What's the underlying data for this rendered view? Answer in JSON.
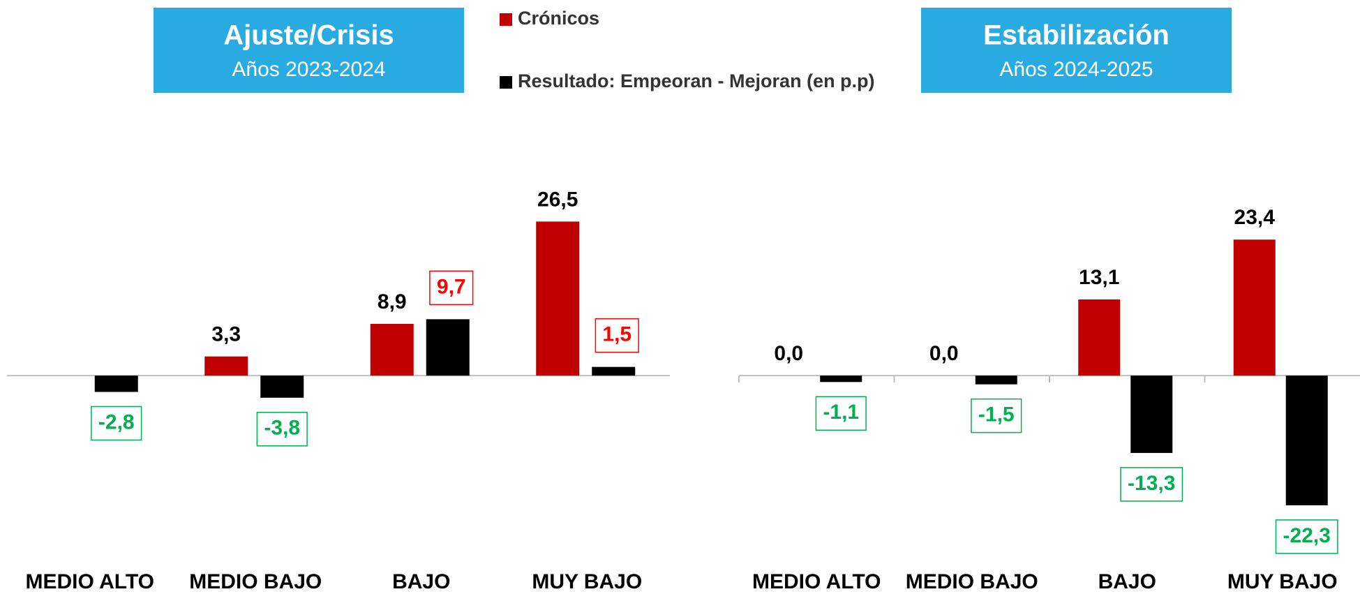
{
  "chart_data": [
    {
      "type": "bar",
      "title": "Ajuste/Crisis",
      "subtitle": "Años 2023-2024",
      "categories": [
        "MEDIO ALTO",
        "MEDIO BAJO",
        "BAJO",
        "MUY BAJO"
      ],
      "series": [
        {
          "name": "Crónicos",
          "color": "#c00000",
          "values": [
            null,
            3.3,
            8.9,
            26.5
          ],
          "value_labels": [
            null,
            "3,3",
            "8,9",
            "26,5"
          ]
        },
        {
          "name": "Resultado: Empeoran - Mejoran (en p.p)",
          "color": "#000000",
          "values": [
            -2.8,
            -3.8,
            9.7,
            1.5
          ],
          "value_labels": [
            "-2,8",
            "-3,8",
            "9,7",
            "1,5"
          ]
        }
      ],
      "ylim": [
        -30,
        40
      ]
    },
    {
      "type": "bar",
      "title": "Estabilización",
      "subtitle": "Años 2024-2025",
      "categories": [
        "MEDIO ALTO",
        "MEDIO BAJO",
        "BAJO",
        "MUY BAJO"
      ],
      "series": [
        {
          "color": "#c00000",
          "values": [
            0.0,
            0.0,
            13.1,
            23.4
          ],
          "value_labels": [
            "0,0",
            "0,0",
            "13,1",
            "23,4"
          ]
        },
        {
          "color": "#000000",
          "values": [
            -1.1,
            -1.5,
            -13.3,
            -22.3
          ],
          "value_labels": [
            "-1,1",
            "-1,5",
            "-13,3",
            "-22,3"
          ]
        }
      ],
      "ylim": [
        -30,
        40
      ]
    }
  ]
}
